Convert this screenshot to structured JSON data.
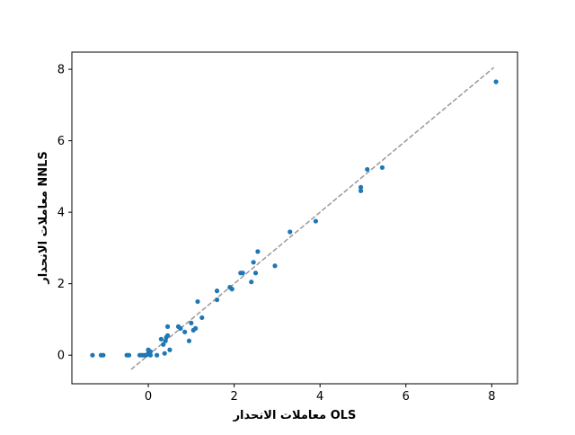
{
  "chart_data": {
    "type": "scatter",
    "xlabel": "معاملات الانحدار OLS",
    "ylabel": "معاملات الانحدار NNLS",
    "color": "#1f77b4",
    "x": [
      -1.3,
      -1.1,
      -1.05,
      -0.5,
      -0.45,
      -0.2,
      -0.15,
      -0.1,
      -0.05,
      0,
      0.05,
      0.05,
      0,
      0.2,
      0.3,
      0.35,
      0.38,
      0.4,
      0.42,
      0.45,
      0.45,
      0.5,
      0.7,
      0.75,
      0.85,
      0.95,
      1.0,
      1.05,
      1.1,
      1.15,
      1.25,
      1.6,
      1.6,
      1.9,
      1.95,
      2.15,
      2.2,
      2.4,
      2.45,
      2.5,
      2.55,
      2.95,
      3.3,
      3.9,
      4.95,
      4.95,
      5.1,
      5.45,
      8.1
    ],
    "y": [
      0,
      0,
      0,
      0,
      0,
      0,
      0,
      0,
      0,
      0.15,
      0.1,
      0,
      0.05,
      0,
      0.45,
      0.3,
      0.05,
      0.4,
      0.5,
      0.55,
      0.8,
      0.15,
      0.8,
      0.75,
      0.65,
      0.4,
      0.9,
      0.7,
      0.75,
      1.5,
      1.05,
      1.55,
      1.8,
      1.9,
      1.85,
      2.3,
      2.3,
      2.05,
      2.6,
      2.3,
      2.9,
      2.5,
      3.45,
      3.75,
      4.6,
      4.7,
      5.2,
      5.25,
      7.65
    ],
    "reference_line": {
      "x": [
        -0.4,
        8.05
      ],
      "y": [
        -0.4,
        8.05
      ],
      "color": "#999999"
    },
    "xlim": [
      -1.78,
      8.6
    ],
    "ylim": [
      -0.8,
      8.48
    ],
    "xticks": [
      0,
      2,
      4,
      6,
      8
    ],
    "yticks": [
      0,
      2,
      4,
      6,
      8
    ]
  }
}
